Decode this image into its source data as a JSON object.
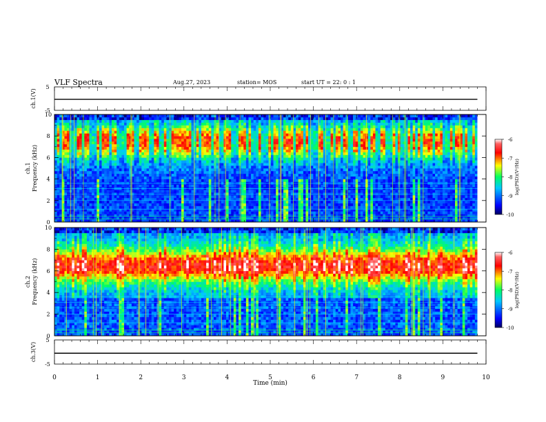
{
  "header": {
    "title": "VLF Spectra",
    "date": "Aug.27, 2023",
    "station": "station= MOS",
    "start_time": "start UT =   22: 0  : 1"
  },
  "chart_data": [
    {
      "type": "line",
      "panel": "ch1-waveform",
      "ylabel": "ch.1(V)",
      "ylim": [
        -5,
        5
      ],
      "ytick_labels": [
        "5",
        "-5"
      ],
      "series": [
        {
          "values": [
            -0.3,
            -0.3
          ]
        }
      ],
      "x": [
        0,
        9.8
      ]
    },
    {
      "type": "heatmap",
      "panel": "ch1-spectrogram",
      "ylabel": "ch.1\nFrequency (kHz)",
      "ylim": [
        0,
        10
      ],
      "ytick_labels": [
        "0",
        "2",
        "4",
        "6",
        "8",
        "10"
      ],
      "xlim": [
        0,
        9.8
      ],
      "colorbar": {
        "label": "log(PSD)(V²/Hz)",
        "range": [
          -10,
          -6
        ],
        "tick_labels": [
          "-6",
          "-7",
          "-8",
          "-9",
          "-10"
        ]
      }
    },
    {
      "type": "heatmap",
      "panel": "ch2-spectrogram",
      "ylabel": "ch.2\nFrequency (kHz)",
      "ylim": [
        0,
        10
      ],
      "ytick_labels": [
        "0",
        "2",
        "4",
        "6",
        "8",
        "10"
      ],
      "xlim": [
        0,
        9.8
      ],
      "colorbar": {
        "label": "log(PSD)(V²/Hz)",
        "range": [
          -10,
          -6
        ],
        "tick_labels": [
          "-6",
          "-7",
          "-8",
          "-9",
          "-10"
        ]
      }
    },
    {
      "type": "line",
      "panel": "ch3-waveform",
      "ylabel": "ch.3(V)",
      "ylim": [
        -5,
        5
      ],
      "ytick_labels": [
        "5",
        "-5"
      ],
      "series": [
        {
          "values": [
            -0.5,
            -0.5
          ]
        }
      ],
      "x": [
        0,
        9.8
      ]
    }
  ],
  "x_axis": {
    "label": "Time (min)",
    "range": [
      0,
      10
    ],
    "tick_labels": [
      "0",
      "1",
      "2",
      "3",
      "4",
      "5",
      "6",
      "7",
      "8",
      "9",
      "10"
    ]
  },
  "colors": {
    "scale": [
      "#000060",
      "#0000ff",
      "#00c8ff",
      "#00ff60",
      "#ffff00",
      "#ff0000",
      "#ffffff"
    ]
  }
}
